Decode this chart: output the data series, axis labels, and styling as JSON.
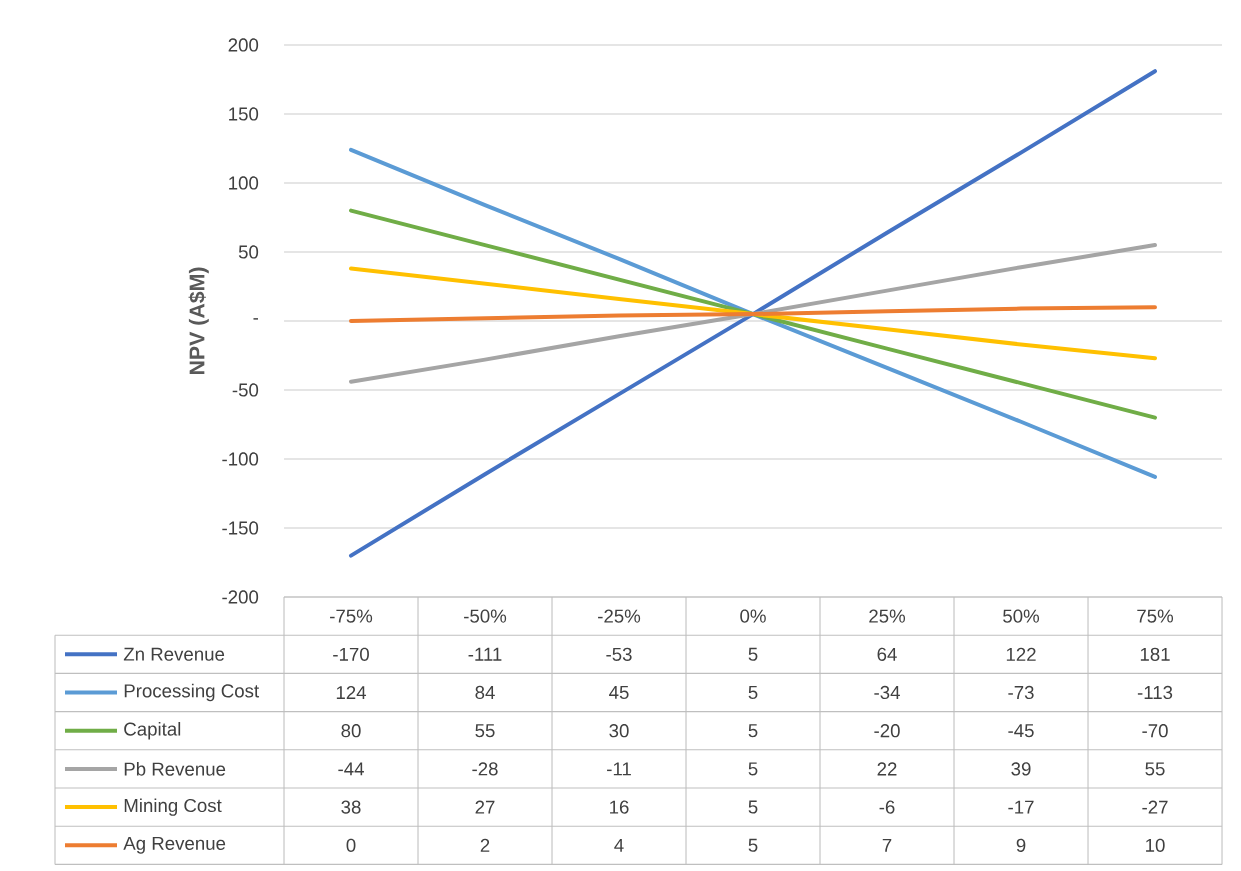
{
  "chart_data": {
    "type": "line",
    "ylabel": "NPV (A$M)",
    "categories": [
      "-75%",
      "-50%",
      "-25%",
      "0%",
      "25%",
      "50%",
      "75%"
    ],
    "series": [
      {
        "name": "Zn Revenue",
        "color": "#4472c4",
        "values": [
          -170,
          -111,
          -53,
          5,
          64,
          122,
          181
        ]
      },
      {
        "name": "Processing Cost",
        "color": "#5b9bd5",
        "values": [
          124,
          84,
          45,
          5,
          -34,
          -73,
          -113
        ]
      },
      {
        "name": "Capital",
        "color": "#70ad47",
        "values": [
          80,
          55,
          30,
          5,
          -20,
          -45,
          -70
        ]
      },
      {
        "name": "Pb Revenue",
        "color": "#a5a5a5",
        "values": [
          -44,
          -28,
          -11,
          5,
          22,
          39,
          55
        ]
      },
      {
        "name": "Mining Cost",
        "color": "#ffc000",
        "values": [
          38,
          27,
          16,
          5,
          -6,
          -17,
          -27
        ]
      },
      {
        "name": "Ag Revenue",
        "color": "#ed7d31",
        "values": [
          0,
          2,
          4,
          5,
          7,
          9,
          10
        ]
      }
    ],
    "ylim": [
      -200,
      200
    ],
    "yticks": [
      -200,
      -150,
      -100,
      -50,
      {
        "value": 0,
        "label": "-"
      },
      50,
      100,
      150,
      200
    ],
    "grid": "y",
    "legend": "bottom",
    "data_labels": true,
    "marker": "none",
    "line_style": "solid"
  }
}
